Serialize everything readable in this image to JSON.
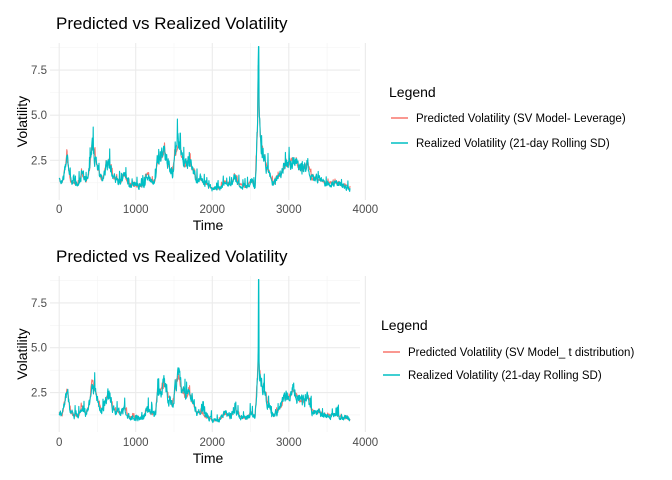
{
  "colors": {
    "predicted": "#F8766D",
    "realized": "#00BFC4",
    "grid_major": "#EBEBEB",
    "grid_minor": "#F3F3F3"
  },
  "chart_data": [
    {
      "type": "line",
      "title": "Predicted vs Realized Volatility",
      "xlabel": "Time",
      "ylabel": "Volatility",
      "xlim": [
        -120,
        3930
      ],
      "ylim": [
        0.3,
        9.0
      ],
      "xticks": [
        "0",
        "1000",
        "2000",
        "3000",
        "4000"
      ],
      "yticks": [
        "2.5",
        "5.0",
        "7.5"
      ],
      "grid": true,
      "legend": {
        "title": "Legend",
        "position": "right"
      },
      "anchors": [
        [
          0,
          1.4
        ],
        [
          40,
          1.2
        ],
        [
          100,
          2.7
        ],
        [
          150,
          1.3
        ],
        [
          250,
          1.2
        ],
        [
          300,
          1.8
        ],
        [
          350,
          1.3
        ],
        [
          400,
          2.0
        ],
        [
          430,
          3.3
        ],
        [
          470,
          2.6
        ],
        [
          520,
          1.8
        ],
        [
          560,
          1.5
        ],
        [
          620,
          2.2
        ],
        [
          650,
          2.5
        ],
        [
          700,
          1.6
        ],
        [
          800,
          1.3
        ],
        [
          850,
          1.7
        ],
        [
          900,
          1.2
        ],
        [
          1000,
          1.1
        ],
        [
          1100,
          1.1
        ],
        [
          1150,
          1.7
        ],
        [
          1200,
          1.3
        ],
        [
          1260,
          1.4
        ],
        [
          1280,
          2.4
        ],
        [
          1330,
          2.7
        ],
        [
          1380,
          3.0
        ],
        [
          1420,
          2.3
        ],
        [
          1480,
          1.8
        ],
        [
          1520,
          2.9
        ],
        [
          1560,
          3.4
        ],
        [
          1600,
          2.6
        ],
        [
          1650,
          2.2
        ],
        [
          1700,
          2.5
        ],
        [
          1760,
          1.8
        ],
        [
          1800,
          1.4
        ],
        [
          1850,
          1.5
        ],
        [
          1900,
          1.2
        ],
        [
          1960,
          1.1
        ],
        [
          2000,
          0.9
        ],
        [
          2100,
          1.0
        ],
        [
          2150,
          1.3
        ],
        [
          2250,
          1.2
        ],
        [
          2300,
          1.6
        ],
        [
          2350,
          1.2
        ],
        [
          2450,
          1.0
        ],
        [
          2500,
          1.4
        ],
        [
          2560,
          1.1
        ],
        [
          2590,
          4.2
        ],
        [
          2600,
          7.7
        ],
        [
          2615,
          5.0
        ],
        [
          2640,
          3.0
        ],
        [
          2680,
          2.6
        ],
        [
          2720,
          2.0
        ],
        [
          2800,
          1.2
        ],
        [
          2850,
          1.5
        ],
        [
          2900,
          1.7
        ],
        [
          2950,
          2.3
        ],
        [
          3000,
          2.2
        ],
        [
          3050,
          2.6
        ],
        [
          3100,
          2.3
        ],
        [
          3150,
          2.0
        ],
        [
          3200,
          2.0
        ],
        [
          3250,
          2.4
        ],
        [
          3300,
          1.5
        ],
        [
          3400,
          1.4
        ],
        [
          3500,
          1.2
        ],
        [
          3600,
          1.3
        ],
        [
          3700,
          1.1
        ],
        [
          3800,
          1.0
        ]
      ],
      "series": [
        {
          "name": "Predicted Volatility (SV Model- Leverage)",
          "noise": 0.12,
          "peak": 7.75,
          "spike_at": 2600
        },
        {
          "name": "Realized Volatility (21-day Rolling SD)",
          "noise": 0.28,
          "peak": 8.8,
          "spike_at": 2607
        }
      ]
    },
    {
      "type": "line",
      "title": "Predicted vs Realized Volatility",
      "xlabel": "Time",
      "ylabel": "Volatility",
      "xlim": [
        -120,
        3930
      ],
      "ylim": [
        0.3,
        9.0
      ],
      "xticks": [
        "0",
        "1000",
        "2000",
        "3000",
        "4000"
      ],
      "yticks": [
        "2.5",
        "5.0",
        "7.5"
      ],
      "grid": true,
      "legend": {
        "title": "Legend",
        "position": "right"
      },
      "anchors": [
        [
          0,
          1.4
        ],
        [
          40,
          1.2
        ],
        [
          100,
          2.7
        ],
        [
          150,
          1.3
        ],
        [
          250,
          1.2
        ],
        [
          300,
          1.8
        ],
        [
          350,
          1.3
        ],
        [
          400,
          2.0
        ],
        [
          430,
          3.3
        ],
        [
          470,
          2.6
        ],
        [
          520,
          1.8
        ],
        [
          560,
          1.5
        ],
        [
          620,
          2.2
        ],
        [
          650,
          2.5
        ],
        [
          700,
          1.6
        ],
        [
          800,
          1.3
        ],
        [
          850,
          1.7
        ],
        [
          900,
          1.2
        ],
        [
          1000,
          1.1
        ],
        [
          1100,
          1.1
        ],
        [
          1150,
          1.7
        ],
        [
          1200,
          1.3
        ],
        [
          1260,
          1.4
        ],
        [
          1280,
          2.4
        ],
        [
          1330,
          2.7
        ],
        [
          1380,
          3.0
        ],
        [
          1420,
          2.3
        ],
        [
          1480,
          1.8
        ],
        [
          1520,
          2.9
        ],
        [
          1560,
          3.4
        ],
        [
          1600,
          2.6
        ],
        [
          1650,
          2.2
        ],
        [
          1700,
          2.5
        ],
        [
          1760,
          1.8
        ],
        [
          1800,
          1.4
        ],
        [
          1850,
          1.5
        ],
        [
          1900,
          1.2
        ],
        [
          1960,
          1.1
        ],
        [
          2000,
          0.9
        ],
        [
          2100,
          1.0
        ],
        [
          2150,
          1.3
        ],
        [
          2250,
          1.2
        ],
        [
          2300,
          1.6
        ],
        [
          2350,
          1.2
        ],
        [
          2450,
          1.0
        ],
        [
          2500,
          1.4
        ],
        [
          2560,
          1.1
        ],
        [
          2590,
          3.5
        ],
        [
          2600,
          4.6
        ],
        [
          2615,
          3.8
        ],
        [
          2640,
          3.0
        ],
        [
          2680,
          2.6
        ],
        [
          2720,
          2.0
        ],
        [
          2800,
          1.2
        ],
        [
          2850,
          1.5
        ],
        [
          2900,
          1.7
        ],
        [
          2950,
          2.3
        ],
        [
          3000,
          2.2
        ],
        [
          3050,
          2.6
        ],
        [
          3100,
          2.3
        ],
        [
          3150,
          2.0
        ],
        [
          3200,
          2.0
        ],
        [
          3250,
          2.4
        ],
        [
          3300,
          1.5
        ],
        [
          3400,
          1.4
        ],
        [
          3500,
          1.2
        ],
        [
          3600,
          1.3
        ],
        [
          3700,
          1.1
        ],
        [
          3800,
          1.0
        ]
      ],
      "series": [
        {
          "name": "Predicted Volatility (SV Model_ t distribution)",
          "noise": 0.1,
          "peak": 4.6,
          "spike_at": 2600
        },
        {
          "name": "Realized Volatility (21-day Rolling SD)",
          "noise": 0.28,
          "peak": 8.8,
          "spike_at": 2607
        }
      ]
    }
  ]
}
